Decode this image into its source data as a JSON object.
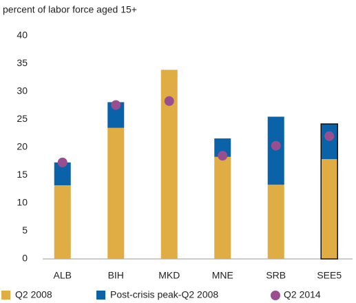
{
  "chart_data": {
    "type": "bar",
    "subtitle": "percent of labor force aged 15+",
    "categories": [
      "ALB",
      "BIH",
      "MKD",
      "MNE",
      "SRB",
      "SEE5"
    ],
    "series": [
      {
        "name": "Q2 2008",
        "kind": "bar",
        "color": "#e0ac44",
        "values": [
          13.2,
          23.5,
          33.9,
          18.3,
          13.3,
          17.9
        ]
      },
      {
        "name": "Post-crisis peak-Q2 2008",
        "kind": "bar",
        "color": "#0a63a8",
        "values": [
          4.1,
          4.6,
          0,
          3.3,
          12.2,
          6.3
        ]
      },
      {
        "name": "Q2 2014",
        "kind": "dot",
        "color": "#994f8f",
        "values": [
          17.3,
          27.6,
          28.3,
          18.5,
          20.3,
          22.0
        ]
      }
    ],
    "outlined": [
      false,
      false,
      false,
      false,
      false,
      true
    ],
    "stacked": true,
    "ylim": [
      0,
      40
    ],
    "yticks": [
      0,
      5,
      10,
      15,
      20,
      25,
      30,
      35,
      40
    ],
    "grid": false
  }
}
